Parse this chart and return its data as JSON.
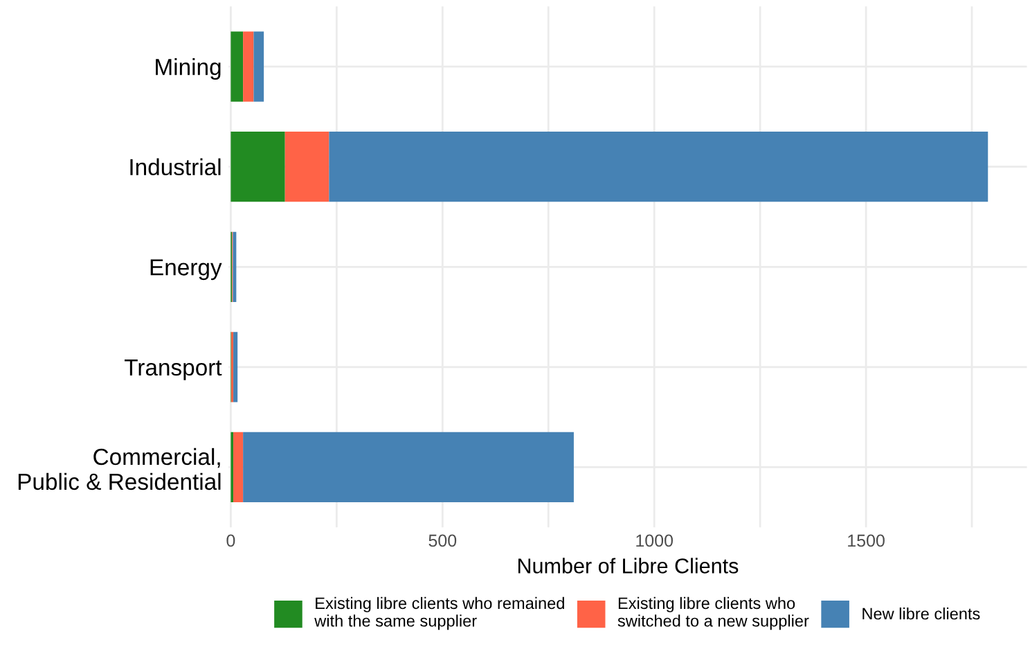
{
  "chart_data": {
    "type": "bar",
    "orientation": "horizontal",
    "stacked": true,
    "xlabel": "Number of Libre Clients",
    "categories": [
      "Mining",
      "Industrial",
      "Energy",
      "Transport",
      "Commercial,\nPublic & Residential"
    ],
    "series": [
      {
        "name": "Existing libre clients who remained\nwith the same supplier",
        "color": "#228b22",
        "values": [
          29,
          128,
          3,
          1,
          6
        ]
      },
      {
        "name": "Existing libre clients who\nswitched to a new supplier",
        "color": "#ff6347",
        "values": [
          25,
          104,
          2,
          5,
          23
        ]
      },
      {
        "name": "New libre clients",
        "color": "#4682b4",
        "values": [
          24,
          1556,
          8,
          10,
          781
        ]
      }
    ],
    "xlim": [
      -5,
      1880
    ],
    "xticks": [
      0,
      500,
      1000,
      1500,
      {
        "value": 250,
        "label": null
      },
      {
        "value": 750,
        "label": null
      },
      {
        "value": 1250,
        "label": null
      },
      {
        "value": 1750,
        "label": null
      }
    ],
    "grid": true,
    "legend": "bottom"
  }
}
